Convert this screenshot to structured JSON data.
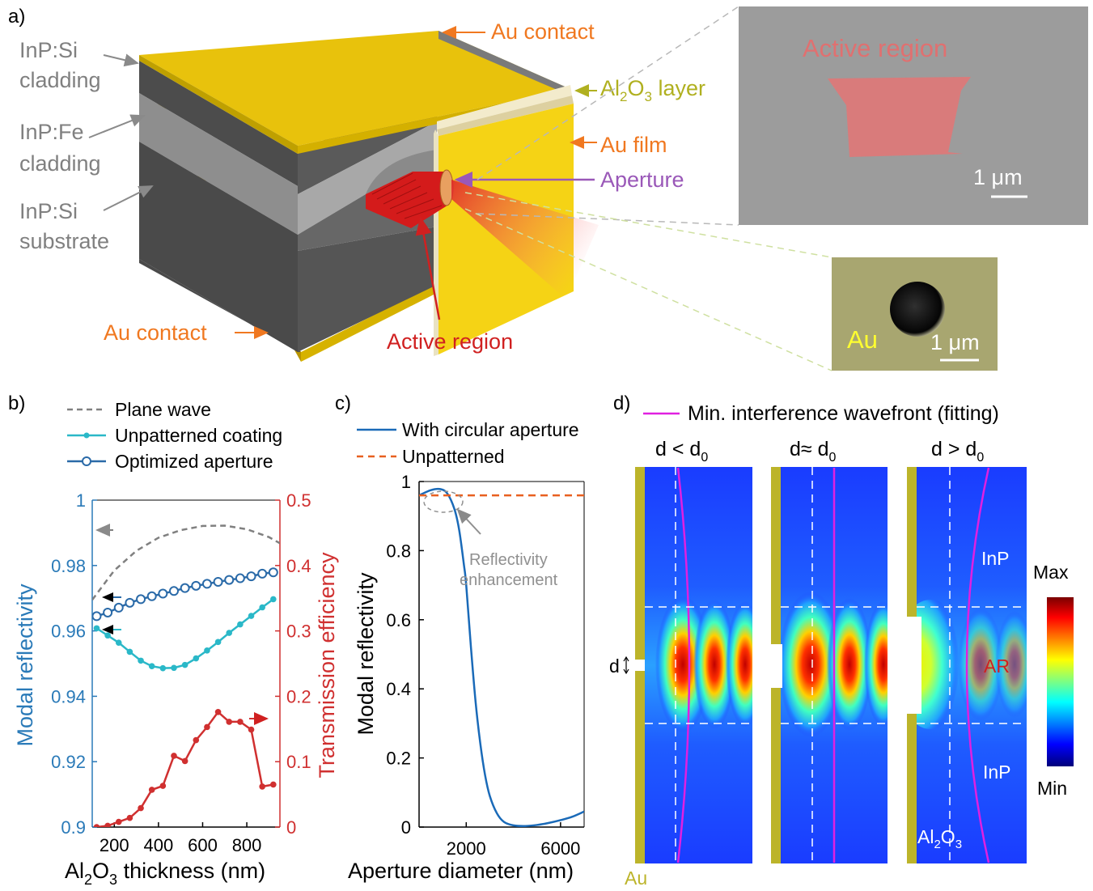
{
  "panel_a": {
    "label": "a)",
    "left_labels": [
      {
        "line1": "InP:Si",
        "line2": "cladding"
      },
      {
        "line1": "InP:Fe",
        "line2": "cladding"
      },
      {
        "line1": "InP:Si",
        "line2": "substrate"
      }
    ],
    "au_contact_top": "Au contact",
    "au_contact_bottom": "Au contact",
    "al2o3_main": "Al",
    "al2o3_sub": "2",
    "al2o3_main2": "O",
    "al2o3_sub2": "3",
    "al2o3_tail": " layer",
    "au_film": "Au film",
    "aperture": "Aperture",
    "active_region": "Active region",
    "sem_top": {
      "label": "Active region",
      "scale": "1 μm"
    },
    "sem_bottom": {
      "label": "Au",
      "scale": "1 μm"
    }
  },
  "panel_b": {
    "label": "b)",
    "legend": [
      "Plane wave",
      "Unpatterned coating",
      "Optimized aperture"
    ],
    "ylabel_left": "Modal reflectivity",
    "ylabel_right": "Transmission efficiency",
    "xlabel_main": "Al",
    "xlabel_sub1": "2",
    "xlabel_mid": "O",
    "xlabel_sub2": "3",
    "xlabel_tail": " thickness (nm)",
    "left_ticks": [
      "0.9",
      "0.92",
      "0.94",
      "0.96",
      "0.98",
      "1"
    ],
    "right_ticks": [
      "0",
      "0.1",
      "0.2",
      "0.3",
      "0.4",
      "0.5"
    ],
    "x_ticks": [
      "200",
      "400",
      "600",
      "800"
    ]
  },
  "panel_c": {
    "label": "c)",
    "legend": [
      "With circular aperture",
      "Unpatterned"
    ],
    "ylabel": "Modal reflectivity",
    "xlabel": "Aperture diameter (nm)",
    "y_ticks": [
      "0",
      "0.2",
      "0.4",
      "0.6",
      "0.8",
      "1"
    ],
    "x_ticks": [
      "2000",
      "6000"
    ],
    "annotation_1": "Reflectivity",
    "annotation_2": "enhancement"
  },
  "panel_d": {
    "label": "d)",
    "legend": "Min. interference wavefront (fitting)",
    "titles": [
      {
        "a": "d < d",
        "sub": "0"
      },
      {
        "a": "d≈ d",
        "sub": "0"
      },
      {
        "a": "d > d",
        "sub": "0"
      }
    ],
    "d_label": "d",
    "inp_top": "InP",
    "ar": "AR",
    "inp_bottom": "InP",
    "al2o3_main": "Al",
    "al2o3_sub1": "2",
    "al2o3_mid": "O",
    "al2o3_sub2": "3",
    "au": "Au",
    "colorbar_max": "Max",
    "colorbar_min": "Min"
  },
  "chart_data": [
    {
      "type": "line",
      "panel": "b",
      "xlabel": "Al2O3 thickness (nm)",
      "ylabel": "Modal reflectivity",
      "ylabel_right": "Transmission efficiency",
      "xlim": [
        100,
        950
      ],
      "ylim": [
        0.9,
        1.0
      ],
      "ylim_right": [
        0,
        0.5
      ],
      "series": [
        {
          "name": "Plane wave",
          "axis": "left",
          "style": "dashed",
          "x": [
            100,
            200,
            300,
            400,
            500,
            600,
            700,
            800,
            900,
            950
          ],
          "y": [
            0.9695,
            0.9785,
            0.9845,
            0.9885,
            0.9908,
            0.9921,
            0.9922,
            0.9911,
            0.9887,
            0.9868
          ]
        },
        {
          "name": "Unpatterned coating",
          "axis": "left",
          "x": [
            120,
            170,
            220,
            270,
            320,
            370,
            420,
            470,
            520,
            570,
            620,
            670,
            720,
            770,
            820,
            870,
            920
          ],
          "y": [
            0.9608,
            0.9586,
            0.9564,
            0.9536,
            0.9509,
            0.9492,
            0.9486,
            0.9487,
            0.9496,
            0.9516,
            0.954,
            0.9566,
            0.9594,
            0.962,
            0.9646,
            0.9672,
            0.9697
          ]
        },
        {
          "name": "Optimized aperture",
          "axis": "left",
          "x": [
            120,
            170,
            220,
            270,
            320,
            370,
            420,
            470,
            520,
            570,
            620,
            670,
            720,
            770,
            820,
            870,
            920
          ],
          "y": [
            0.9645,
            0.9656,
            0.9671,
            0.9686,
            0.9697,
            0.9706,
            0.9714,
            0.9722,
            0.9731,
            0.9738,
            0.9744,
            0.975,
            0.9756,
            0.9761,
            0.9767,
            0.9775,
            0.9779
          ]
        },
        {
          "name": "Transmission efficiency",
          "axis": "right",
          "x": [
            120,
            170,
            220,
            270,
            320,
            370,
            420,
            470,
            520,
            570,
            620,
            670,
            720,
            770,
            820,
            870,
            920
          ],
          "y": [
            0.0,
            0.002,
            0.008,
            0.014,
            0.029,
            0.057,
            0.063,
            0.109,
            0.101,
            0.133,
            0.153,
            0.176,
            0.161,
            0.161,
            0.149,
            0.062,
            0.065
          ]
        }
      ]
    },
    {
      "type": "line",
      "panel": "c",
      "xlabel": "Aperture diameter (nm)",
      "ylabel": "Modal reflectivity",
      "xlim": [
        0,
        7000
      ],
      "ylim": [
        0,
        1.0
      ],
      "series": [
        {
          "name": "With circular aperture",
          "x": [
            0,
            500,
            900,
            1200,
            1500,
            1700,
            1900,
            2000,
            2200,
            2400,
            2600,
            2800,
            3000,
            3300,
            3600,
            4000,
            4500,
            5000,
            5500,
            6000,
            6500,
            7000
          ],
          "y": [
            0.96,
            0.975,
            0.978,
            0.965,
            0.92,
            0.86,
            0.76,
            0.7,
            0.52,
            0.36,
            0.24,
            0.15,
            0.09,
            0.04,
            0.015,
            0.005,
            0.003,
            0.006,
            0.012,
            0.02,
            0.03,
            0.045
          ]
        },
        {
          "name": "Unpatterned",
          "style": "dashed",
          "x": [
            0,
            7000
          ],
          "y": [
            0.96,
            0.96
          ]
        }
      ]
    }
  ]
}
